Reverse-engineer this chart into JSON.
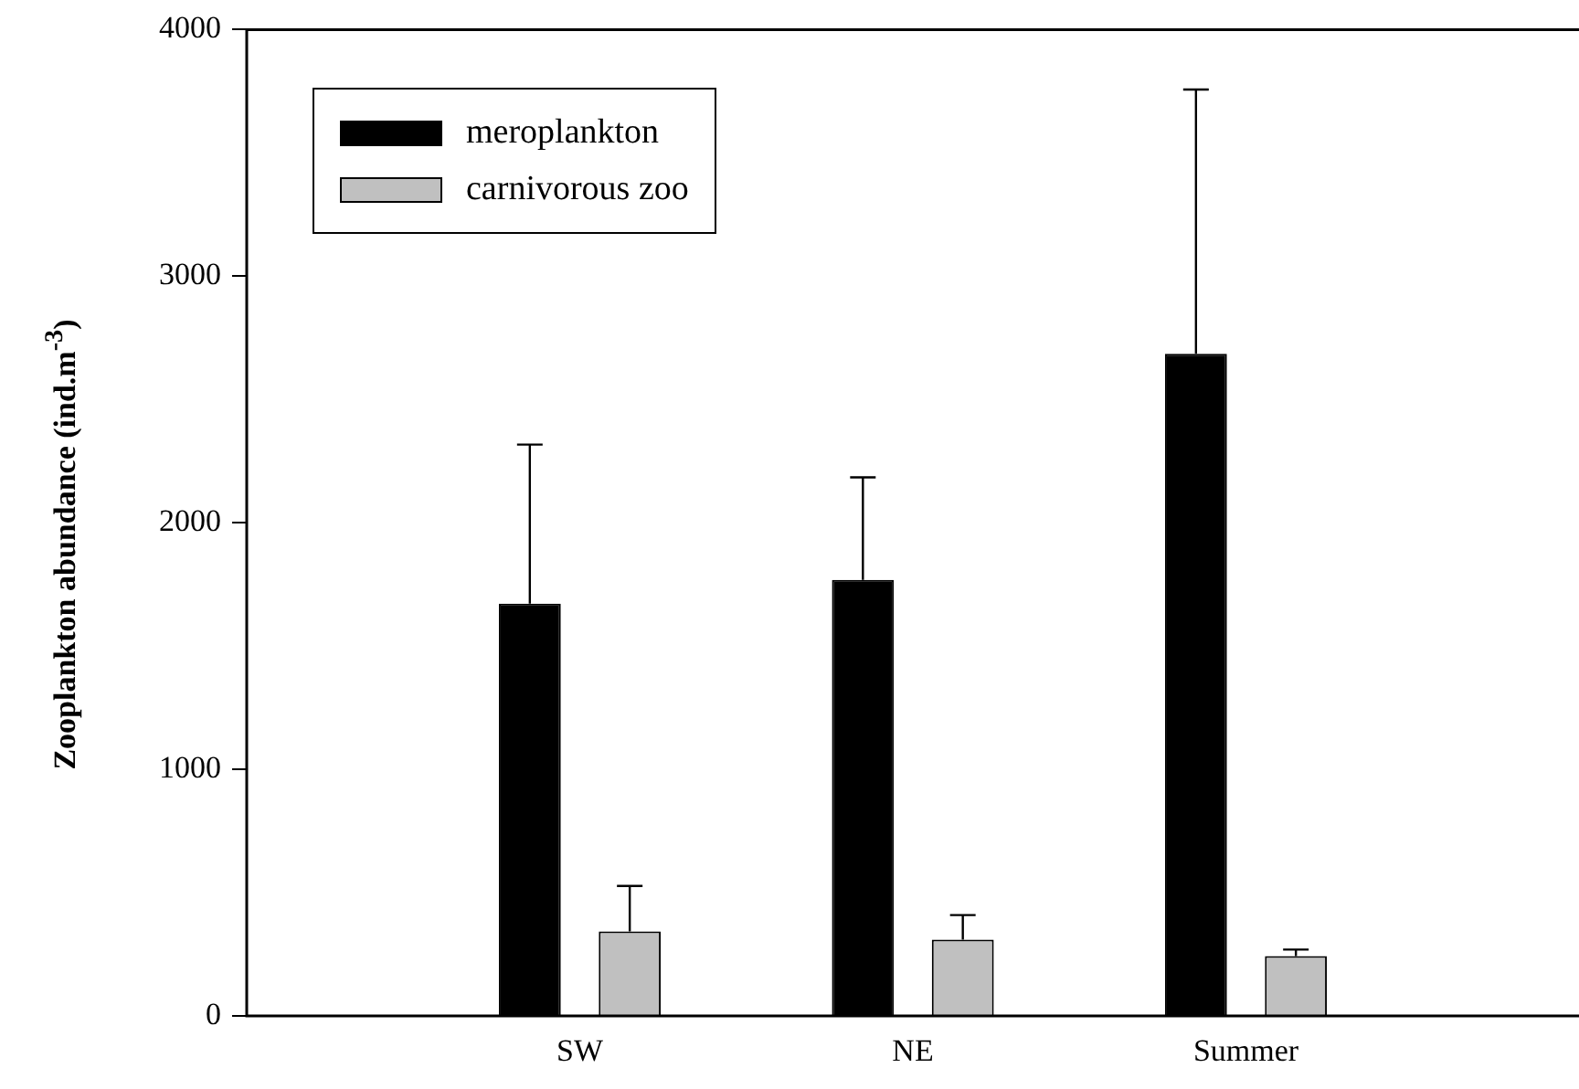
{
  "chart_data": {
    "type": "bar",
    "ylabel": "Zooplankton abundance (ind.m$^{-3}$)",
    "categories": [
      "SW",
      "NE",
      "Summer"
    ],
    "series": [
      {
        "name": "meroplankton",
        "color": "#000000",
        "values": [
          1672,
          1768,
          2685
        ],
        "errors": [
          [
            1672,
            2317
          ],
          [
            1768,
            2184
          ],
          [
            2685,
            3757
          ]
        ]
      },
      {
        "name": "carnivorous zoo",
        "color": "#c0c0c0",
        "values": [
          343,
          309,
          243
        ],
        "errors": [
          [
            343,
            527
          ],
          [
            309,
            409
          ],
          [
            243,
            269
          ]
        ]
      }
    ],
    "ylim": [
      0,
      4000
    ],
    "yticks": [
      0,
      1000,
      2000,
      3000,
      4000
    ],
    "grid": false,
    "legend": "top left"
  }
}
